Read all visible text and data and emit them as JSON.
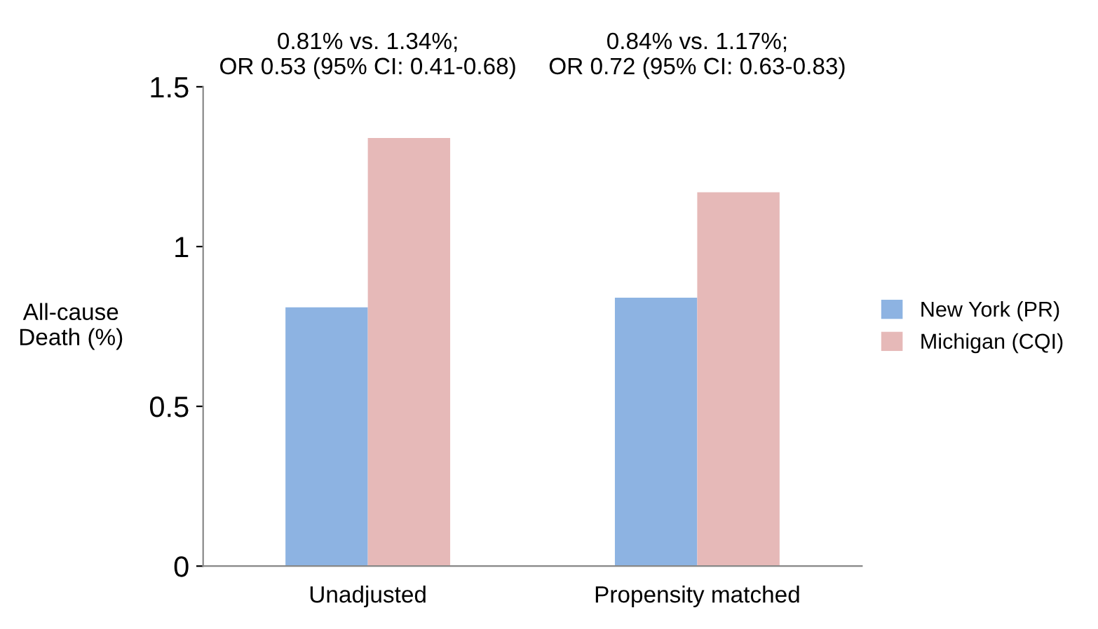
{
  "chart_data": {
    "type": "bar",
    "ylabel": "All-cause\nDeath (%)",
    "categories": [
      "Unadjusted",
      "Propensity matched"
    ],
    "series": [
      {
        "name": "New York (PR)",
        "color": "#8db3e2",
        "values": [
          0.81,
          0.84
        ]
      },
      {
        "name": "Michigan (CQI)",
        "color": "#e6b9b8",
        "values": [
          1.34,
          1.17
        ]
      }
    ],
    "ylim": [
      0,
      1.5
    ],
    "yticks": [
      0,
      0.5,
      1,
      1.5
    ],
    "legend": "right",
    "grid": false,
    "annotations": [
      "0.81% vs. 1.34%;\nOR 0.53 (95% CI: 0.41-0.68)",
      "0.84% vs. 1.17%;\nOR 0.72 (95% CI: 0.63-0.83)"
    ]
  }
}
